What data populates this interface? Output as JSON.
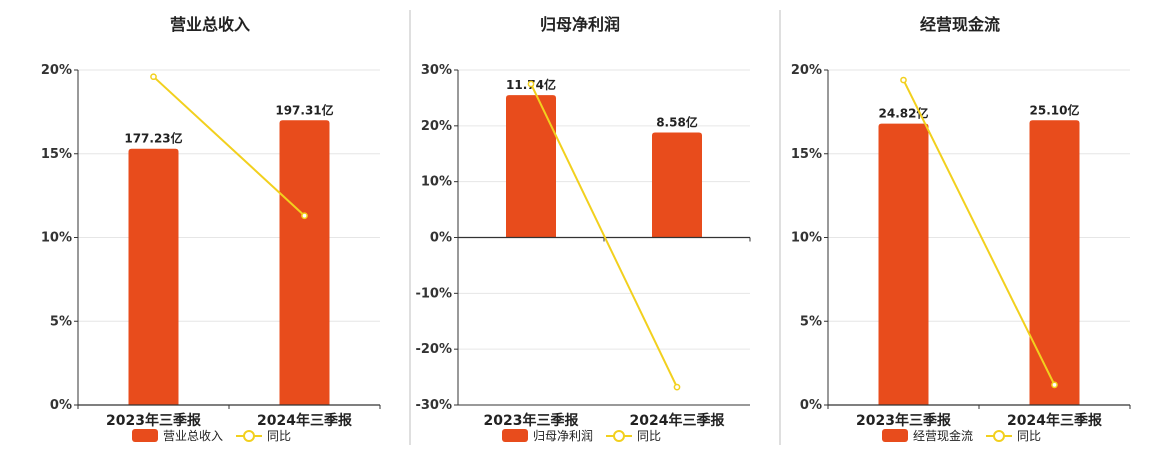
{
  "colors": {
    "bar": "#e84c1c",
    "line": "#f2d01e",
    "grid": "#e6e6e6",
    "axis": "#333333"
  },
  "legend_line_label": "同比",
  "chart_data": [
    {
      "type": "bar",
      "title": "营业总收入",
      "categories": [
        "2023年三季报",
        "2024年三季报"
      ],
      "series": [
        {
          "name": "营业总收入",
          "type": "bar",
          "values": [
            15.3,
            17.0
          ],
          "data_labels": [
            "177.23亿",
            "197.31亿"
          ]
        },
        {
          "name": "同比",
          "type": "line",
          "values": [
            19.6,
            11.3
          ]
        }
      ],
      "yticks": [
        "0%",
        "5%",
        "10%",
        "15%",
        "20%"
      ],
      "ylim": [
        0,
        20
      ]
    },
    {
      "type": "bar",
      "title": "归母净利润",
      "categories": [
        "2023年三季报",
        "2024年三季报"
      ],
      "series": [
        {
          "name": "归母净利润",
          "type": "bar",
          "values": [
            25.5,
            18.8
          ],
          "data_labels": [
            "11.74亿",
            "8.58亿"
          ]
        },
        {
          "name": "同比",
          "type": "line",
          "values": [
            27.5,
            -26.8
          ]
        }
      ],
      "yticks": [
        "-30%",
        "-20%",
        "-10%",
        "0%",
        "10%",
        "20%",
        "30%"
      ],
      "ylim": [
        -30,
        30
      ]
    },
    {
      "type": "bar",
      "title": "经营现金流",
      "categories": [
        "2023年三季报",
        "2024年三季报"
      ],
      "series": [
        {
          "name": "经营现金流",
          "type": "bar",
          "values": [
            16.8,
            17.0
          ],
          "data_labels": [
            "24.82亿",
            "25.10亿"
          ]
        },
        {
          "name": "同比",
          "type": "line",
          "values": [
            19.4,
            1.2
          ]
        }
      ],
      "yticks": [
        "0%",
        "5%",
        "10%",
        "15%",
        "20%"
      ],
      "ylim": [
        0,
        20
      ]
    }
  ]
}
